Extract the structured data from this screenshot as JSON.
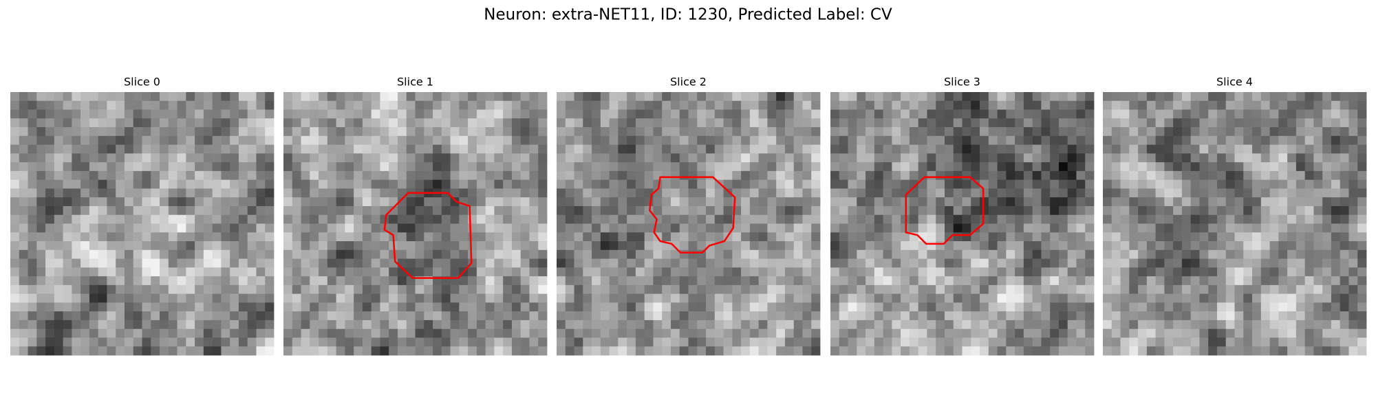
{
  "title": "Neuron: extra-NET11, ID: 1230, Predicted Label: CV",
  "panels": [
    {
      "title": "Slice 0"
    },
    {
      "title": "Slice 1"
    },
    {
      "title": "Slice 2"
    },
    {
      "title": "Slice 3"
    },
    {
      "title": "Slice 4"
    }
  ]
}
